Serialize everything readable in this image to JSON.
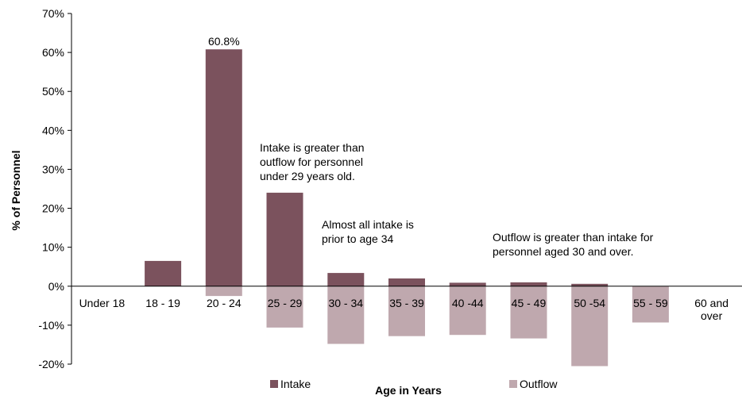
{
  "chart_data": {
    "type": "bar",
    "xlabel": "Age in Years",
    "ylabel": "% of Personnel",
    "ylim": [
      -20,
      70
    ],
    "yticks": [
      -20,
      -10,
      0,
      10,
      20,
      30,
      40,
      50,
      60,
      70
    ],
    "ytick_labels": [
      "-20%",
      "-10%",
      "0%",
      "10%",
      "20%",
      "30%",
      "40%",
      "50%",
      "60%",
      "70%"
    ],
    "categories": [
      "Under 18",
      "18 - 19",
      "20 - 24",
      "25 - 29",
      "30 - 34",
      "35 - 39",
      "40 -44",
      "45 - 49",
      "50 -54",
      "55 - 59",
      "60 and over"
    ],
    "series": [
      {
        "name": "Intake",
        "color": "#7b525d",
        "values": [
          0,
          6.5,
          60.8,
          24.0,
          3.4,
          2.0,
          0.9,
          1.0,
          0.6,
          0,
          0
        ]
      },
      {
        "name": "Outflow",
        "color": "#bfa8ae",
        "values": [
          0,
          0,
          -2.5,
          -10.6,
          -14.8,
          -12.8,
          -12.5,
          -13.4,
          -20.5,
          -9.3,
          0
        ]
      }
    ],
    "data_labels": [
      {
        "category": "20 - 24",
        "text": "60.8%"
      }
    ],
    "annotations": [
      {
        "id": "note-intake-under-29",
        "lines": [
          "Intake is greater than",
          "outflow for personnel",
          "under 29 years old."
        ]
      },
      {
        "id": "note-intake-before-34",
        "lines": [
          "Almost all intake is",
          "prior to age 34"
        ]
      },
      {
        "id": "note-outflow-30-over",
        "lines": [
          "Outflow is greater than intake for",
          "personnel aged 30 and over."
        ]
      }
    ],
    "legend": {
      "placement": "bottom",
      "items": [
        "Intake",
        "Outflow"
      ]
    },
    "grid": false
  }
}
